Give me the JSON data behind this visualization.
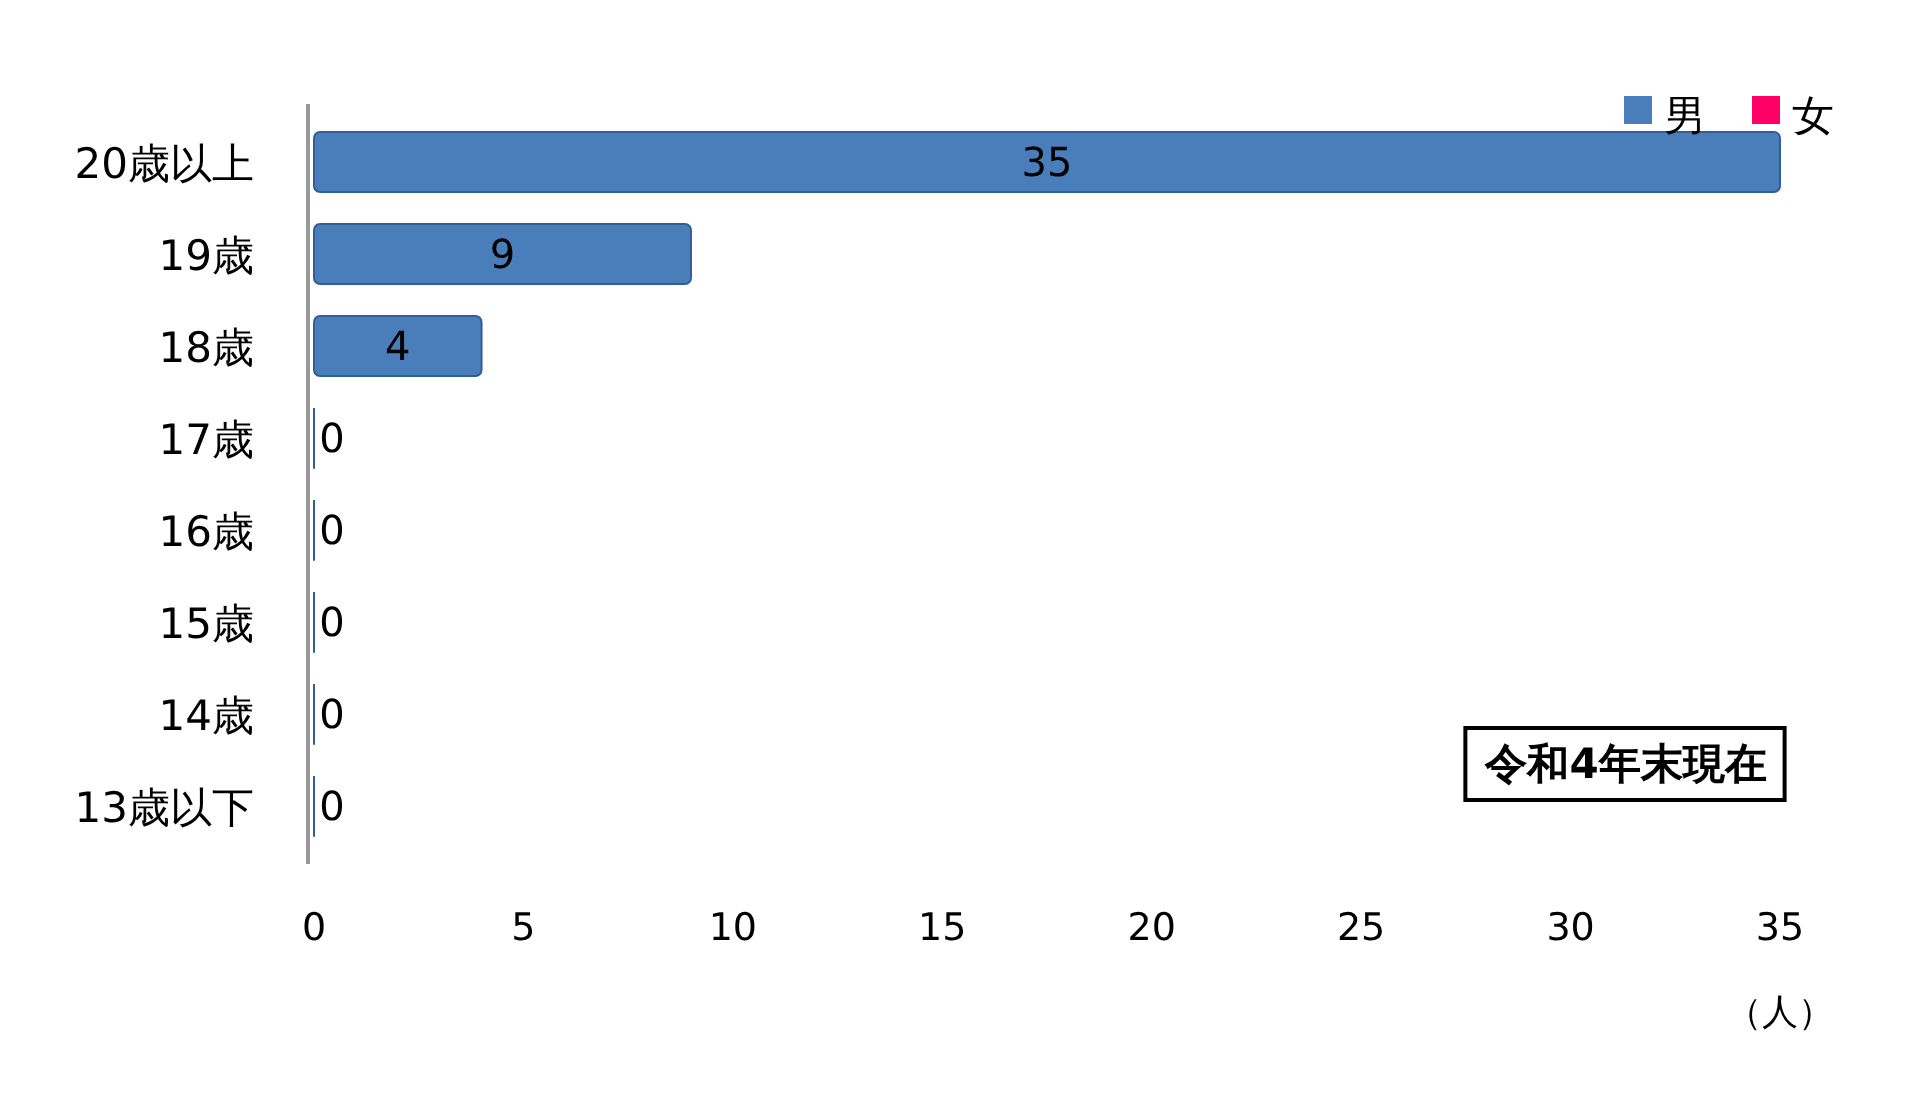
{
  "chart_data": {
    "type": "bar",
    "orientation": "horizontal",
    "categories": [
      "20歳以上",
      "19歳",
      "18歳",
      "17歳",
      "16歳",
      "15歳",
      "14歳",
      "13歳以下"
    ],
    "series": [
      {
        "name": "男",
        "color": "#4a7ebb",
        "values": [
          35,
          9,
          4,
          0,
          0,
          0,
          0,
          0
        ]
      },
      {
        "name": "女",
        "color": "#ff0066",
        "values": [
          null,
          null,
          null,
          null,
          null,
          null,
          null,
          null
        ]
      }
    ],
    "xlim": [
      0,
      35
    ],
    "xticks": [
      0,
      5,
      10,
      15,
      20,
      25,
      30,
      35
    ],
    "xlabel": "（人）",
    "annotations": [
      "令和4年末現在"
    ],
    "legend": "top right",
    "data_labels": true,
    "grid": false
  }
}
